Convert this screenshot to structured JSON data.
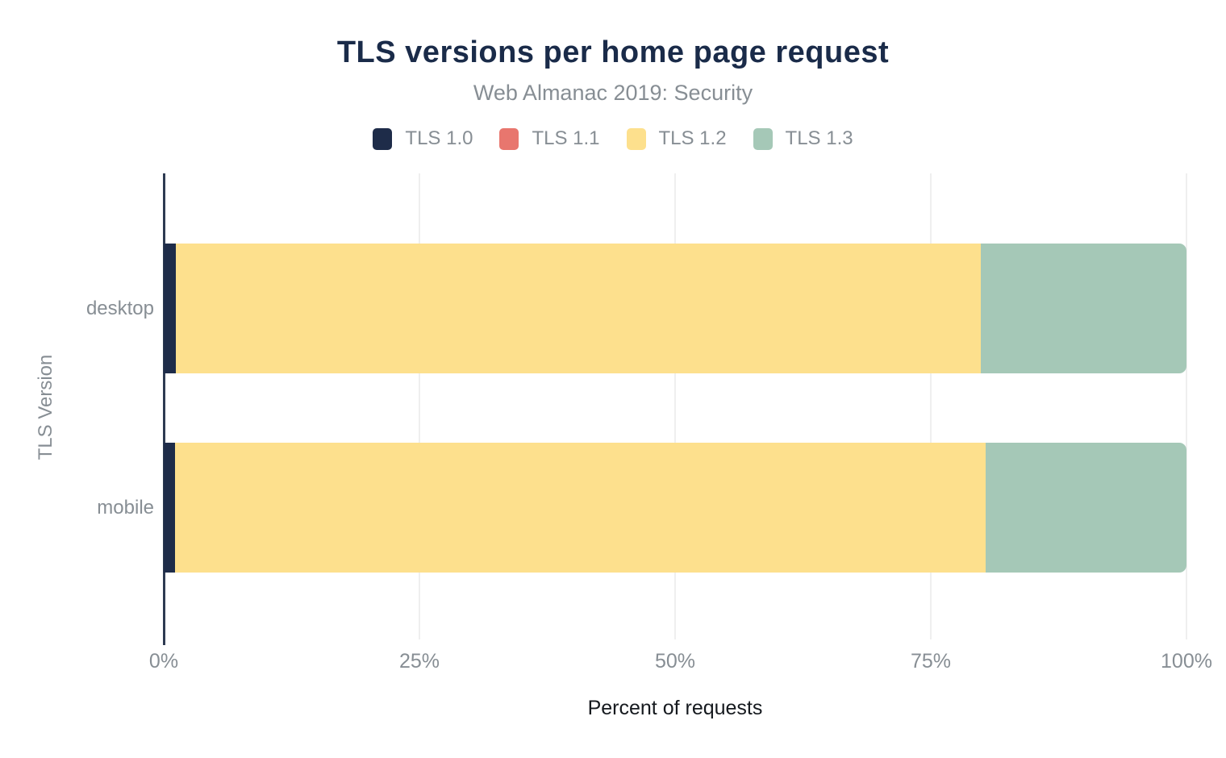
{
  "header": {
    "title": "TLS versions per home page request",
    "subtitle": "Web Almanac 2019: Security"
  },
  "chart_data": {
    "type": "bar",
    "orientation": "horizontal",
    "stacked": true,
    "title": "TLS versions per home page request",
    "subtitle": "Web Almanac 2019: Security",
    "categories": [
      "desktop",
      "mobile"
    ],
    "series": [
      {
        "name": "TLS 1.0",
        "color": "#1e2c49",
        "values": [
          1.2,
          1.1
        ]
      },
      {
        "name": "TLS 1.1",
        "color": "#e8766e",
        "values": [
          0.0,
          0.0
        ]
      },
      {
        "name": "TLS 1.2",
        "color": "#fde08d",
        "values": [
          78.7,
          79.3
        ]
      },
      {
        "name": "TLS 1.3",
        "color": "#a5c8b7",
        "values": [
          20.1,
          19.6
        ]
      }
    ],
    "xlabel": "Percent of requests",
    "ylabel": "TLS Version",
    "xlim": [
      0,
      100
    ],
    "x_ticks": [
      "0%",
      "25%",
      "50%",
      "75%",
      "100%"
    ],
    "x_tick_values": [
      0,
      25,
      50,
      75,
      100
    ],
    "grid": true,
    "legend_position": "top",
    "axis_line_color": "#2e3b52",
    "gridline_color": "#efefef"
  }
}
